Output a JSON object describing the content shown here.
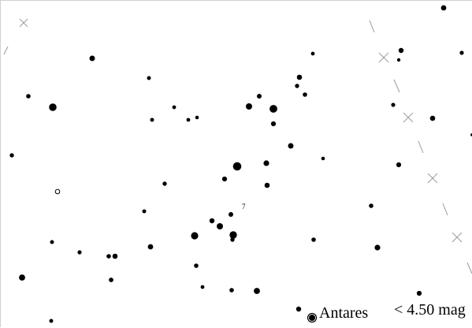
{
  "chart": {
    "labels": {
      "near_star_label": "7",
      "antares": "Antares",
      "limit": "< 4.50 mag"
    }
  },
  "style": {
    "background": "#ffffff",
    "foreground": "#000000",
    "grid_color": "#9a9a9a"
  }
}
